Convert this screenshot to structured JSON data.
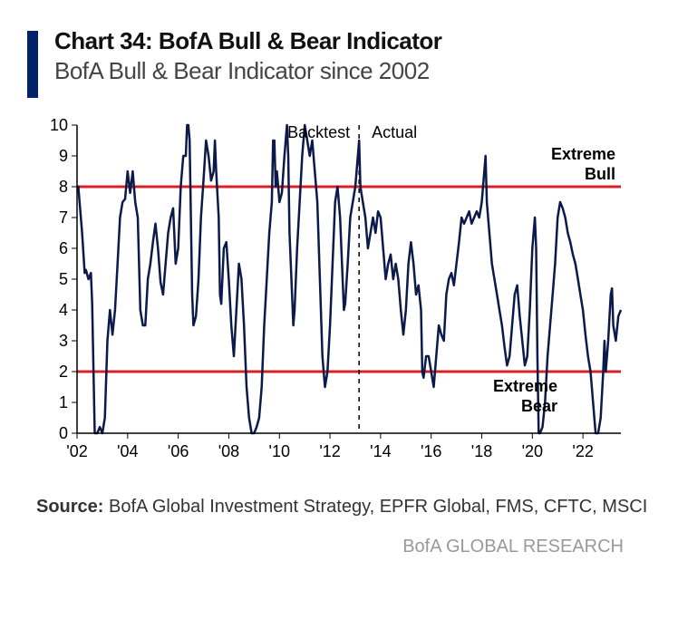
{
  "title": "Chart 34: BofA Bull & Bear Indicator",
  "subtitle": "BofA Bull & Bear Indicator since 2002",
  "source_label": "Source:",
  "source_text": "BofA Global Investment Strategy, EPFR Global, FMS, CFTC, MSCI",
  "attribution": "BofA GLOBAL RESEARCH",
  "chart": {
    "type": "line",
    "accent_color": "#012169",
    "line_color": "#0b1a4a",
    "line_width": 2.5,
    "threshold_color": "#d72027",
    "threshold_width": 3,
    "divider_color": "#000000",
    "axis_color": "#000000",
    "tick_color": "#000000",
    "background_color": "#ffffff",
    "text_color": "#000000",
    "ylim": [
      0,
      10
    ],
    "ytick_step": 1,
    "xlim": [
      2002,
      2023.5
    ],
    "xtick_start": 2002,
    "xtick_step": 2,
    "xtick_count": 11,
    "label_fontsize": 18,
    "annotation_fontsize": 18,
    "upper_threshold": 8,
    "lower_threshold": 2,
    "label_upper": "Extreme Bull",
    "label_lower": "Extreme Bear",
    "divider_x": 2013.15,
    "backtest_label": "Backtest",
    "actual_label": "Actual",
    "series": [
      [
        2002.0,
        8.0
      ],
      [
        2002.05,
        8.0
      ],
      [
        2002.1,
        7.5
      ],
      [
        2002.2,
        6.5
      ],
      [
        2002.3,
        5.2
      ],
      [
        2002.35,
        5.3
      ],
      [
        2002.45,
        5.0
      ],
      [
        2002.55,
        5.2
      ],
      [
        2002.6,
        4.2
      ],
      [
        2002.7,
        0.0
      ],
      [
        2002.8,
        0.0
      ],
      [
        2002.9,
        0.2
      ],
      [
        2003.0,
        0.0
      ],
      [
        2003.1,
        0.5
      ],
      [
        2003.2,
        3.0
      ],
      [
        2003.3,
        4.0
      ],
      [
        2003.4,
        3.2
      ],
      [
        2003.5,
        4.0
      ],
      [
        2003.6,
        5.5
      ],
      [
        2003.7,
        7.0
      ],
      [
        2003.8,
        7.5
      ],
      [
        2003.9,
        7.6
      ],
      [
        2004.0,
        8.5
      ],
      [
        2004.1,
        7.8
      ],
      [
        2004.2,
        8.5
      ],
      [
        2004.3,
        7.5
      ],
      [
        2004.4,
        7.0
      ],
      [
        2004.5,
        4.0
      ],
      [
        2004.6,
        3.5
      ],
      [
        2004.7,
        3.5
      ],
      [
        2004.8,
        5.0
      ],
      [
        2004.9,
        5.5
      ],
      [
        2005.0,
        6.2
      ],
      [
        2005.1,
        6.8
      ],
      [
        2005.2,
        6.0
      ],
      [
        2005.3,
        4.9
      ],
      [
        2005.4,
        4.5
      ],
      [
        2005.5,
        5.5
      ],
      [
        2005.6,
        6.5
      ],
      [
        2005.7,
        7.0
      ],
      [
        2005.8,
        7.3
      ],
      [
        2005.9,
        5.5
      ],
      [
        2006.0,
        6.0
      ],
      [
        2006.1,
        8.0
      ],
      [
        2006.2,
        9.0
      ],
      [
        2006.3,
        9.0
      ],
      [
        2006.35,
        10.0
      ],
      [
        2006.4,
        10.0
      ],
      [
        2006.45,
        9.5
      ],
      [
        2006.5,
        7.0
      ],
      [
        2006.55,
        4.5
      ],
      [
        2006.6,
        3.5
      ],
      [
        2006.7,
        3.8
      ],
      [
        2006.8,
        5.0
      ],
      [
        2006.9,
        7.0
      ],
      [
        2007.0,
        8.2
      ],
      [
        2007.1,
        9.5
      ],
      [
        2007.2,
        9.0
      ],
      [
        2007.3,
        8.2
      ],
      [
        2007.4,
        8.5
      ],
      [
        2007.45,
        9.5
      ],
      [
        2007.5,
        8.5
      ],
      [
        2007.6,
        7.0
      ],
      [
        2007.65,
        4.5
      ],
      [
        2007.7,
        4.2
      ],
      [
        2007.8,
        6.0
      ],
      [
        2007.9,
        6.2
      ],
      [
        2008.0,
        5.0
      ],
      [
        2008.1,
        3.5
      ],
      [
        2008.2,
        2.5
      ],
      [
        2008.3,
        4.0
      ],
      [
        2008.4,
        5.5
      ],
      [
        2008.5,
        5.0
      ],
      [
        2008.6,
        3.5
      ],
      [
        2008.7,
        1.5
      ],
      [
        2008.8,
        0.5
      ],
      [
        2008.9,
        0.0
      ],
      [
        2009.0,
        0.0
      ],
      [
        2009.1,
        0.2
      ],
      [
        2009.2,
        0.5
      ],
      [
        2009.3,
        1.5
      ],
      [
        2009.4,
        3.5
      ],
      [
        2009.5,
        5.0
      ],
      [
        2009.6,
        6.5
      ],
      [
        2009.7,
        7.5
      ],
      [
        2009.75,
        9.5
      ],
      [
        2009.8,
        9.5
      ],
      [
        2009.85,
        8.0
      ],
      [
        2009.9,
        8.5
      ],
      [
        2010.0,
        7.5
      ],
      [
        2010.1,
        7.8
      ],
      [
        2010.2,
        9.0
      ],
      [
        2010.3,
        10.0
      ],
      [
        2010.35,
        9.0
      ],
      [
        2010.4,
        6.5
      ],
      [
        2010.5,
        4.5
      ],
      [
        2010.55,
        3.5
      ],
      [
        2010.6,
        4.0
      ],
      [
        2010.7,
        6.0
      ],
      [
        2010.8,
        7.5
      ],
      [
        2010.9,
        9.0
      ],
      [
        2011.0,
        10.0
      ],
      [
        2011.1,
        9.5
      ],
      [
        2011.2,
        9.0
      ],
      [
        2011.3,
        9.5
      ],
      [
        2011.4,
        8.5
      ],
      [
        2011.5,
        7.5
      ],
      [
        2011.6,
        5.0
      ],
      [
        2011.7,
        2.5
      ],
      [
        2011.8,
        1.5
      ],
      [
        2011.9,
        2.0
      ],
      [
        2012.0,
        3.5
      ],
      [
        2012.1,
        5.5
      ],
      [
        2012.2,
        7.5
      ],
      [
        2012.3,
        8.0
      ],
      [
        2012.4,
        7.0
      ],
      [
        2012.5,
        5.0
      ],
      [
        2012.55,
        4.0
      ],
      [
        2012.6,
        4.2
      ],
      [
        2012.7,
        5.5
      ],
      [
        2012.8,
        7.0
      ],
      [
        2012.9,
        7.5
      ],
      [
        2013.0,
        8.0
      ],
      [
        2013.1,
        9.0
      ],
      [
        2013.15,
        9.5
      ],
      [
        2013.2,
        8.0
      ],
      [
        2013.3,
        7.5
      ],
      [
        2013.4,
        7.0
      ],
      [
        2013.5,
        6.0
      ],
      [
        2013.6,
        6.5
      ],
      [
        2013.7,
        7.0
      ],
      [
        2013.8,
        6.5
      ],
      [
        2013.9,
        7.2
      ],
      [
        2014.0,
        7.0
      ],
      [
        2014.1,
        6.0
      ],
      [
        2014.2,
        5.0
      ],
      [
        2014.3,
        5.5
      ],
      [
        2014.4,
        5.8
      ],
      [
        2014.5,
        5.0
      ],
      [
        2014.6,
        5.5
      ],
      [
        2014.7,
        5.0
      ],
      [
        2014.8,
        4.0
      ],
      [
        2014.9,
        3.2
      ],
      [
        2015.0,
        4.0
      ],
      [
        2015.1,
        5.5
      ],
      [
        2015.2,
        6.2
      ],
      [
        2015.3,
        5.5
      ],
      [
        2015.4,
        4.5
      ],
      [
        2015.5,
        4.8
      ],
      [
        2015.6,
        4.0
      ],
      [
        2015.65,
        2.0
      ],
      [
        2015.7,
        1.8
      ],
      [
        2015.8,
        2.5
      ],
      [
        2015.9,
        2.5
      ],
      [
        2016.0,
        2.0
      ],
      [
        2016.1,
        1.5
      ],
      [
        2016.2,
        2.5
      ],
      [
        2016.3,
        3.5
      ],
      [
        2016.4,
        3.2
      ],
      [
        2016.5,
        3.0
      ],
      [
        2016.6,
        4.5
      ],
      [
        2016.7,
        5.0
      ],
      [
        2016.8,
        5.2
      ],
      [
        2016.9,
        4.8
      ],
      [
        2017.0,
        5.5
      ],
      [
        2017.1,
        6.2
      ],
      [
        2017.2,
        7.0
      ],
      [
        2017.3,
        6.8
      ],
      [
        2017.4,
        7.0
      ],
      [
        2017.5,
        7.2
      ],
      [
        2017.6,
        6.8
      ],
      [
        2017.7,
        7.0
      ],
      [
        2017.8,
        7.2
      ],
      [
        2017.9,
        7.0
      ],
      [
        2018.0,
        7.5
      ],
      [
        2018.1,
        8.5
      ],
      [
        2018.15,
        9.0
      ],
      [
        2018.2,
        7.5
      ],
      [
        2018.3,
        6.5
      ],
      [
        2018.4,
        5.5
      ],
      [
        2018.5,
        5.0
      ],
      [
        2018.6,
        4.5
      ],
      [
        2018.7,
        4.0
      ],
      [
        2018.8,
        3.5
      ],
      [
        2018.9,
        2.8
      ],
      [
        2019.0,
        2.2
      ],
      [
        2019.1,
        2.5
      ],
      [
        2019.2,
        3.5
      ],
      [
        2019.3,
        4.5
      ],
      [
        2019.4,
        4.8
      ],
      [
        2019.5,
        3.8
      ],
      [
        2019.6,
        3.0
      ],
      [
        2019.7,
        2.2
      ],
      [
        2019.8,
        2.5
      ],
      [
        2019.9,
        4.0
      ],
      [
        2020.0,
        6.0
      ],
      [
        2020.1,
        7.0
      ],
      [
        2020.15,
        6.0
      ],
      [
        2020.2,
        2.5
      ],
      [
        2020.25,
        0.0
      ],
      [
        2020.3,
        0.0
      ],
      [
        2020.4,
        0.2
      ],
      [
        2020.5,
        1.0
      ],
      [
        2020.6,
        2.5
      ],
      [
        2020.7,
        3.5
      ],
      [
        2020.8,
        4.5
      ],
      [
        2020.9,
        5.5
      ],
      [
        2021.0,
        7.0
      ],
      [
        2021.1,
        7.5
      ],
      [
        2021.2,
        7.3
      ],
      [
        2021.3,
        7.0
      ],
      [
        2021.4,
        6.5
      ],
      [
        2021.5,
        6.2
      ],
      [
        2021.6,
        5.8
      ],
      [
        2021.7,
        5.5
      ],
      [
        2021.8,
        5.0
      ],
      [
        2021.9,
        4.5
      ],
      [
        2022.0,
        4.0
      ],
      [
        2022.1,
        3.2
      ],
      [
        2022.2,
        2.5
      ],
      [
        2022.3,
        2.0
      ],
      [
        2022.4,
        1.0
      ],
      [
        2022.5,
        0.0
      ],
      [
        2022.6,
        0.0
      ],
      [
        2022.7,
        0.5
      ],
      [
        2022.8,
        2.0
      ],
      [
        2022.85,
        3.0
      ],
      [
        2022.9,
        2.0
      ],
      [
        2023.0,
        3.0
      ],
      [
        2023.1,
        4.5
      ],
      [
        2023.15,
        4.7
      ],
      [
        2023.2,
        3.5
      ],
      [
        2023.3,
        3.0
      ],
      [
        2023.4,
        3.8
      ],
      [
        2023.5,
        4.0
      ]
    ]
  }
}
